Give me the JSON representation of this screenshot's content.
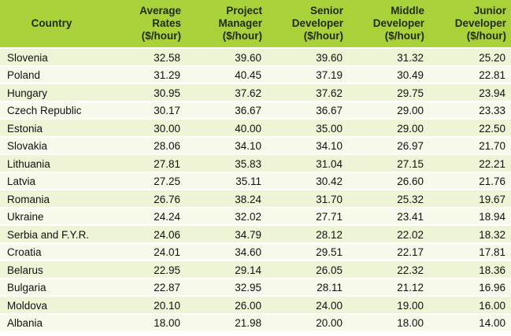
{
  "chart_data": {
    "type": "table",
    "columns": [
      [
        "Country"
      ],
      [
        "Average",
        "Rates",
        "($/hour)"
      ],
      [
        "Project",
        "Manager",
        "($/hour)"
      ],
      [
        "Senior",
        "Developer",
        "($/hour)"
      ],
      [
        "Middle",
        "Developer",
        "($/hour)"
      ],
      [
        "Junior",
        "Developer",
        "($/hour)"
      ]
    ],
    "rows": [
      [
        "Slovenia",
        "32.58",
        "39.60",
        "39.60",
        "31.32",
        "25.20"
      ],
      [
        "Poland",
        "31.29",
        "40.45",
        "37.19",
        "30.49",
        "22.81"
      ],
      [
        "Hungary",
        "30.95",
        "37.62",
        "37.62",
        "29.75",
        "23.94"
      ],
      [
        "Czech Republic",
        "30.17",
        "36.67",
        "36.67",
        "29.00",
        "23.33"
      ],
      [
        "Estonia",
        "30.00",
        "40.00",
        "35.00",
        "29.00",
        "22.50"
      ],
      [
        "Slovakia",
        "28.06",
        "34.10",
        "34.10",
        "26.97",
        "21.70"
      ],
      [
        "Lithuania",
        "27.81",
        "35.83",
        "31.04",
        "27.15",
        "22.21"
      ],
      [
        "Latvia",
        "27.25",
        "35.11",
        "30.42",
        "26.60",
        "21.76"
      ],
      [
        "Romania",
        "26.76",
        "38.24",
        "31.70",
        "25.32",
        "19.67"
      ],
      [
        "Ukraine",
        "24.24",
        "32.02",
        "27.71",
        "23.41",
        "18.94"
      ],
      [
        "Serbia and F.Y.R.",
        "24.06",
        "34.79",
        "28.12",
        "22.02",
        "18.32"
      ],
      [
        "Croatia",
        "24.01",
        "34.60",
        "29.51",
        "22.17",
        "17.81"
      ],
      [
        "Belarus",
        "22.95",
        "29.14",
        "26.05",
        "22.32",
        "18.36"
      ],
      [
        "Bulgaria",
        "22.87",
        "32.95",
        "28.11",
        "21.12",
        "16.96"
      ],
      [
        "Moldova",
        "20.10",
        "26.00",
        "24.00",
        "19.00",
        "16.00"
      ],
      [
        "Albania",
        "18.00",
        "21.98",
        "20.00",
        "18.00",
        "14.00"
      ]
    ]
  },
  "colors": {
    "header_bg": "#a9d13a",
    "row_odd": "#eef4d6",
    "row_even": "#f7f9ea"
  }
}
